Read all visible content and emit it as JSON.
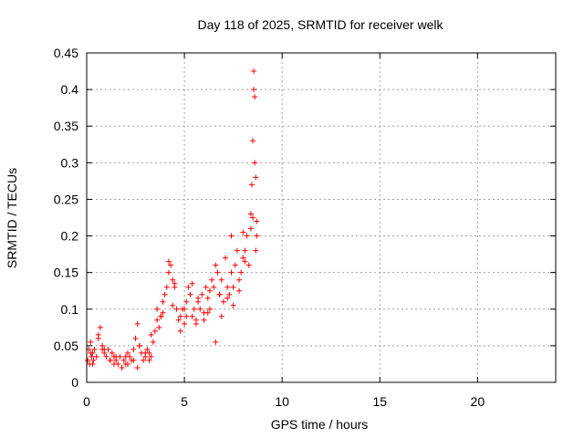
{
  "chart_data": {
    "type": "scatter",
    "title": "Day 118 of 2025, SRMTID for receiver welk",
    "xlabel": "GPS time / hours",
    "ylabel": "SRMTID / TECUs",
    "xlim": [
      0,
      24
    ],
    "ylim": [
      0,
      0.45
    ],
    "x_ticks": [
      0,
      5,
      10,
      15,
      20
    ],
    "x_tick_labels": [
      "0",
      "5",
      "10",
      "15",
      "20"
    ],
    "y_ticks": [
      0,
      0.05,
      0.1,
      0.15,
      0.2,
      0.25,
      0.3,
      0.35,
      0.4,
      0.45
    ],
    "y_tick_labels": [
      "0",
      "0.05",
      "0.1",
      "0.15",
      "0.2",
      "0.25",
      "0.3",
      "0.35",
      "0.4",
      "0.45"
    ],
    "grid": true,
    "marker": "plus",
    "color": "#ff0000",
    "series": [
      {
        "x": [
          0.05,
          0.1,
          0.15,
          0.2,
          0.25,
          0.3,
          0.35,
          0.4,
          0.5,
          0.6,
          0.7,
          0.8,
          0.9,
          1.0,
          1.1,
          1.2,
          1.3,
          1.4,
          1.5,
          1.6,
          1.7,
          1.8,
          1.9,
          2.0,
          2.1,
          2.2,
          2.3,
          2.4,
          2.5,
          2.6,
          2.7,
          2.8,
          2.9,
          3.0,
          3.1,
          3.2,
          3.3,
          3.4,
          3.5,
          3.6,
          3.7,
          3.8,
          3.9,
          4.0,
          4.1,
          4.2,
          4.3,
          4.4,
          4.5,
          4.6,
          4.7,
          4.8,
          4.9,
          5.0,
          5.1,
          5.2,
          5.3,
          5.4,
          5.5,
          5.6,
          5.7,
          5.8,
          5.9,
          6.0,
          6.1,
          6.2,
          6.3,
          6.4,
          6.5,
          6.6,
          6.7,
          6.8,
          6.9,
          7.0,
          7.1,
          7.2,
          7.3,
          7.4,
          7.5,
          7.6,
          7.7,
          7.8,
          7.9,
          8.0,
          8.1,
          8.2,
          8.3,
          8.4,
          8.45,
          8.5,
          8.55,
          8.6,
          8.65,
          8.7,
          0.3,
          0.6,
          0.9,
          1.2,
          1.5,
          1.8,
          2.1,
          2.4,
          2.7,
          3.0,
          3.3,
          3.6,
          3.9,
          4.2,
          4.5,
          4.8,
          5.1,
          5.4,
          5.7,
          6.0,
          6.3,
          6.6,
          6.9,
          7.2,
          7.5,
          7.8,
          8.1,
          8.4,
          8.5,
          8.6,
          8.7,
          0.2,
          0.8,
          1.4,
          2.0,
          2.6,
          3.2,
          3.8,
          4.4,
          5.0,
          5.6,
          6.2,
          6.8,
          7.4,
          8.0,
          8.55,
          8.65
        ],
        "y": [
          0.03,
          0.045,
          0.025,
          0.055,
          0.035,
          0.04,
          0.03,
          0.045,
          0.035,
          0.065,
          0.075,
          0.05,
          0.04,
          0.035,
          0.045,
          0.03,
          0.04,
          0.035,
          0.03,
          0.025,
          0.035,
          0.02,
          0.03,
          0.025,
          0.04,
          0.035,
          0.03,
          0.045,
          0.06,
          0.08,
          0.05,
          0.04,
          0.03,
          0.035,
          0.045,
          0.04,
          0.035,
          0.055,
          0.07,
          0.1,
          0.075,
          0.09,
          0.11,
          0.12,
          0.13,
          0.15,
          0.16,
          0.14,
          0.13,
          0.1,
          0.085,
          0.09,
          0.1,
          0.08,
          0.11,
          0.13,
          0.12,
          0.09,
          0.1,
          0.085,
          0.11,
          0.1,
          0.12,
          0.095,
          0.13,
          0.115,
          0.1,
          0.14,
          0.13,
          0.16,
          0.15,
          0.12,
          0.14,
          0.11,
          0.17,
          0.13,
          0.12,
          0.15,
          0.13,
          0.16,
          0.18,
          0.14,
          0.15,
          0.17,
          0.18,
          0.2,
          0.16,
          0.23,
          0.27,
          0.33,
          0.4,
          0.39,
          0.28,
          0.2,
          0.025,
          0.06,
          0.045,
          0.03,
          0.035,
          0.02,
          0.025,
          0.03,
          0.05,
          0.04,
          0.065,
          0.085,
          0.095,
          0.165,
          0.135,
          0.07,
          0.09,
          0.135,
          0.115,
          0.085,
          0.125,
          0.055,
          0.09,
          0.115,
          0.105,
          0.125,
          0.165,
          0.21,
          0.225,
          0.3,
          0.22,
          0.04,
          0.045,
          0.025,
          0.035,
          0.02,
          0.03,
          0.09,
          0.105,
          0.1,
          0.08,
          0.095,
          0.12,
          0.2,
          0.205,
          0.425,
          0.18
        ]
      }
    ]
  }
}
